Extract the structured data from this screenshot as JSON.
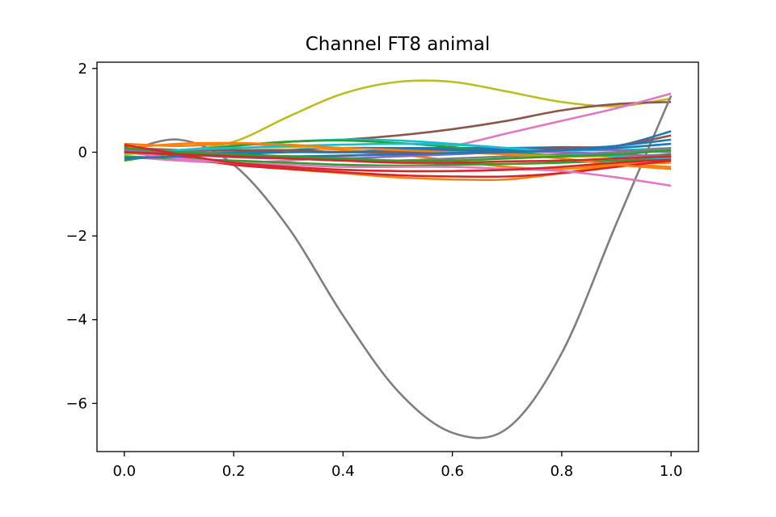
{
  "chart_data": {
    "type": "line",
    "title": "Channel FT8 animal",
    "xlabel": "",
    "ylabel": "",
    "xlim": [
      -0.05,
      1.05
    ],
    "ylim": [
      -7.15,
      2.15
    ],
    "xticks": [
      0.0,
      0.2,
      0.4,
      0.6,
      0.8,
      1.0
    ],
    "xtick_labels": [
      "0.0",
      "0.2",
      "0.4",
      "0.6",
      "0.8",
      "1.0"
    ],
    "yticks": [
      -6,
      -4,
      -2,
      0,
      2
    ],
    "ytick_labels": [
      "−6",
      "−4",
      "−2",
      "0",
      "2"
    ],
    "grid": false,
    "x": [
      0.0,
      0.1,
      0.2,
      0.3,
      0.4,
      0.5,
      0.6,
      0.7,
      0.8,
      0.9,
      1.0
    ],
    "series": [
      {
        "color": "#bcbd22",
        "values": [
          0.1,
          0.05,
          0.25,
          0.85,
          1.4,
          1.68,
          1.68,
          1.45,
          1.2,
          1.1,
          1.28
        ]
      },
      {
        "color": "#8c564b",
        "values": [
          0.05,
          0.0,
          0.15,
          0.25,
          0.3,
          0.4,
          0.55,
          0.75,
          1.0,
          1.15,
          1.2
        ]
      },
      {
        "color": "#e377c2",
        "values": [
          -0.1,
          -0.2,
          -0.25,
          -0.2,
          -0.1,
          0.0,
          0.15,
          0.45,
          0.75,
          1.05,
          1.4
        ]
      },
      {
        "color": "#7f7f7f",
        "values": [
          0.0,
          0.3,
          -0.3,
          -1.8,
          -3.9,
          -5.7,
          -6.7,
          -6.6,
          -4.8,
          -1.7,
          1.35
        ]
      },
      {
        "color": "#1f77b4",
        "values": [
          0.05,
          0.0,
          0.0,
          0.05,
          0.1,
          0.1,
          0.1,
          0.1,
          0.12,
          0.15,
          0.5
        ]
      },
      {
        "color": "#ff7f0e",
        "values": [
          0.2,
          0.15,
          0.2,
          0.15,
          0.05,
          -0.05,
          -0.2,
          -0.35,
          -0.4,
          -0.3,
          -0.35
        ]
      },
      {
        "color": "#ff7f0e",
        "values": [
          0.0,
          -0.1,
          -0.25,
          -0.4,
          -0.5,
          -0.6,
          -0.65,
          -0.65,
          -0.5,
          -0.3,
          -0.25
        ]
      },
      {
        "color": "#d62728",
        "values": [
          0.15,
          -0.1,
          -0.3,
          -0.4,
          -0.48,
          -0.55,
          -0.58,
          -0.58,
          -0.5,
          -0.35,
          -0.2
        ]
      },
      {
        "color": "#2ca02c",
        "values": [
          -0.1,
          -0.15,
          -0.2,
          -0.25,
          -0.3,
          -0.32,
          -0.3,
          -0.28,
          -0.25,
          -0.2,
          -0.15
        ]
      },
      {
        "color": "#17becf",
        "values": [
          -0.05,
          0.05,
          0.15,
          0.25,
          0.3,
          0.28,
          0.2,
          0.1,
          0.05,
          0.05,
          0.1
        ]
      },
      {
        "color": "#2ca02c",
        "values": [
          -0.2,
          0.0,
          0.15,
          0.25,
          0.28,
          0.22,
          0.12,
          0.0,
          -0.08,
          -0.1,
          -0.05
        ]
      },
      {
        "color": "#9467bd",
        "values": [
          0.1,
          0.05,
          -0.05,
          -0.1,
          -0.08,
          -0.05,
          0.0,
          0.05,
          0.08,
          0.05,
          0.0
        ]
      },
      {
        "color": "#e377c2",
        "values": [
          0.0,
          -0.15,
          -0.25,
          -0.3,
          -0.35,
          -0.35,
          -0.35,
          -0.4,
          -0.45,
          -0.6,
          -0.8
        ]
      },
      {
        "color": "#7f7f7f",
        "values": [
          0.05,
          0.0,
          -0.1,
          -0.15,
          -0.2,
          -0.2,
          -0.15,
          -0.1,
          -0.05,
          0.0,
          0.1
        ]
      },
      {
        "color": "#bcbd22",
        "values": [
          -0.05,
          0.05,
          0.1,
          0.12,
          0.1,
          0.05,
          0.0,
          -0.05,
          -0.1,
          -0.1,
          -0.1
        ]
      },
      {
        "color": "#8c564b",
        "values": [
          0.1,
          0.05,
          0.05,
          0.05,
          0.0,
          0.0,
          0.0,
          0.05,
          0.1,
          0.15,
          0.4
        ]
      },
      {
        "color": "#1f77b4",
        "values": [
          -0.15,
          -0.1,
          -0.05,
          0.0,
          0.0,
          0.05,
          0.05,
          0.05,
          0.05,
          0.1,
          0.2
        ]
      },
      {
        "color": "#17becf",
        "values": [
          0.0,
          0.05,
          0.1,
          0.15,
          0.18,
          0.2,
          0.18,
          0.1,
          0.0,
          -0.1,
          -0.15
        ]
      },
      {
        "color": "#9467bd",
        "values": [
          0.05,
          -0.05,
          -0.12,
          -0.15,
          -0.15,
          -0.1,
          -0.05,
          0.0,
          0.0,
          -0.05,
          -0.1
        ]
      },
      {
        "color": "#ff7f0e",
        "values": [
          0.1,
          0.2,
          0.22,
          0.18,
          0.1,
          0.05,
          0.0,
          -0.05,
          -0.15,
          -0.3,
          -0.4
        ]
      },
      {
        "color": "#1f77b4",
        "values": [
          0.0,
          -0.05,
          -0.08,
          -0.1,
          -0.08,
          -0.05,
          -0.02,
          0.0,
          0.05,
          0.15,
          0.3
        ]
      },
      {
        "color": "#2ca02c",
        "values": [
          0.1,
          0.0,
          -0.05,
          -0.1,
          -0.15,
          -0.2,
          -0.2,
          -0.15,
          -0.1,
          -0.05,
          0.05
        ]
      },
      {
        "color": "#d62728",
        "values": [
          0.0,
          -0.05,
          -0.1,
          -0.15,
          -0.2,
          -0.25,
          -0.25,
          -0.22,
          -0.2,
          -0.15,
          -0.1
        ]
      },
      {
        "color": "#d62728",
        "values": [
          0.18,
          -0.05,
          -0.25,
          -0.35,
          -0.42,
          -0.45,
          -0.45,
          -0.42,
          -0.35,
          -0.25,
          -0.18
        ]
      }
    ]
  }
}
